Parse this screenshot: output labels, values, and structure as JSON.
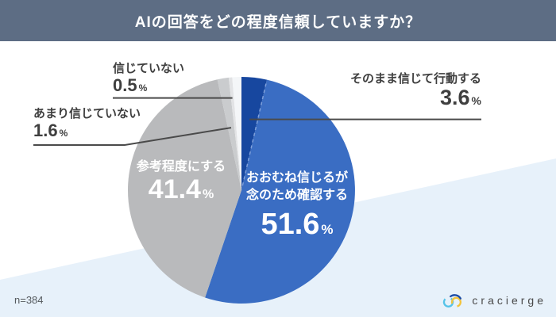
{
  "header": {
    "title": "AIの回答をどの程度信頼していますか？"
  },
  "chart_data": {
    "type": "pie",
    "title": "AIの回答をどの程度信頼していますか？",
    "unit": "%",
    "direction": "clockwise",
    "start_angle_deg": 0,
    "slices": [
      {
        "label": "そのまま信じて行動する",
        "value": 3.6,
        "display": "3.6",
        "color": "#17479f",
        "label_position": "outside-right"
      },
      {
        "label": "おおむね信じるが念のため確認する",
        "label_lines": [
          "おおむね信じるが",
          "念のため確認する"
        ],
        "value": 51.6,
        "display": "51.6",
        "color": "#3a6dc3",
        "label_position": "inside"
      },
      {
        "label": "参考程度にする",
        "value": 41.4,
        "display": "41.4",
        "color": "#b9babc",
        "label_position": "inside"
      },
      {
        "label": "あまり信じていない",
        "value": 1.6,
        "display": "1.6",
        "color": "#caccce",
        "label_position": "outside-left"
      },
      {
        "label": "信じていない",
        "value": 0.5,
        "display": "0.5",
        "color": "#e2e3e5",
        "label_position": "outside-top-left"
      },
      {
        "label": "",
        "value": 1.3,
        "display": "",
        "color": "#f4f6f8",
        "label_position": "none"
      }
    ],
    "annotations": {
      "sample_size": "n=384"
    }
  },
  "footer": {
    "sample_size": "n=384",
    "brand": "cracierge"
  },
  "colors": {
    "header_bg": "#5d6d84",
    "accent_bg": "#e7f1fa",
    "leader_line": "#4a4a4a",
    "dashed_separator": "#7fa0da",
    "logo_cyan": "#56c3e8",
    "logo_yellow": "#f2c33c",
    "logo_navy": "#1b4ba5"
  }
}
